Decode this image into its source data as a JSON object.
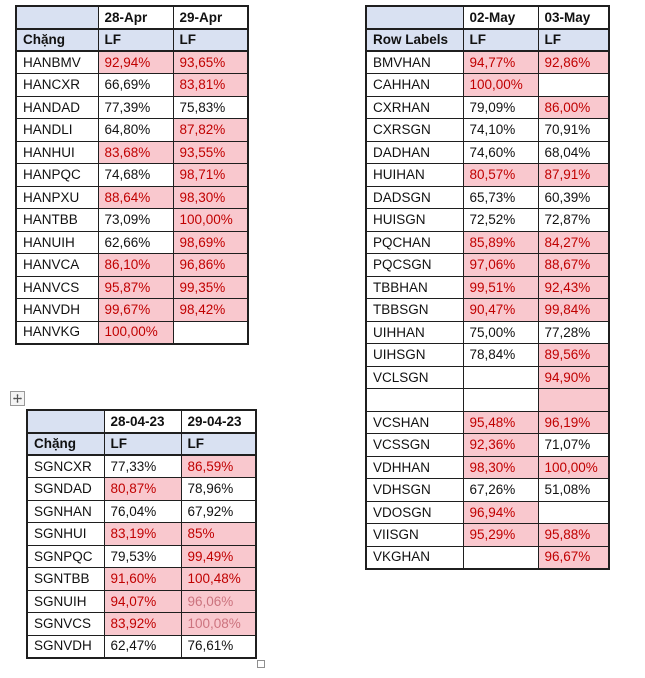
{
  "colors": {
    "header_fill": "#D9E1F2",
    "highlight_fill": "#F9C8CE",
    "highlight_text": "#C00000",
    "highlight_text_faded": "#CC737E",
    "grid_border": "#1F1F1F"
  },
  "icons": {
    "table_move_handle": "four-way-move-plus",
    "table_resize_handle": "small-square"
  },
  "tables": [
    {
      "name": "han-outbound-lf-table",
      "corner": "",
      "date_headers": [
        "28-Apr",
        "29-Apr"
      ],
      "label_header": "Chặng",
      "measure_headers": [
        "LF",
        "LF"
      ],
      "rows": [
        {
          "label": "HANBMV",
          "cells": [
            {
              "text": "92,94%",
              "highlight": true
            },
            {
              "text": "93,65%",
              "highlight": true
            }
          ]
        },
        {
          "label": "HANCXR",
          "cells": [
            {
              "text": "66,69%",
              "highlight": false
            },
            {
              "text": "83,81%",
              "highlight": true
            }
          ]
        },
        {
          "label": "HANDAD",
          "cells": [
            {
              "text": "77,39%",
              "highlight": false
            },
            {
              "text": "75,83%",
              "highlight": false
            }
          ]
        },
        {
          "label": "HANDLI",
          "cells": [
            {
              "text": "64,80%",
              "highlight": false
            },
            {
              "text": "87,82%",
              "highlight": true
            }
          ]
        },
        {
          "label": "HANHUI",
          "cells": [
            {
              "text": "83,68%",
              "highlight": true
            },
            {
              "text": "93,55%",
              "highlight": true
            }
          ]
        },
        {
          "label": "HANPQC",
          "cells": [
            {
              "text": "74,68%",
              "highlight": false
            },
            {
              "text": "98,71%",
              "highlight": true
            }
          ]
        },
        {
          "label": "HANPXU",
          "cells": [
            {
              "text": "88,64%",
              "highlight": true
            },
            {
              "text": "98,30%",
              "highlight": true
            }
          ]
        },
        {
          "label": "HANTBB",
          "cells": [
            {
              "text": "73,09%",
              "highlight": false
            },
            {
              "text": "100,00%",
              "highlight": true
            }
          ]
        },
        {
          "label": "HANUIH",
          "cells": [
            {
              "text": "62,66%",
              "highlight": false
            },
            {
              "text": "98,69%",
              "highlight": true
            }
          ]
        },
        {
          "label": "HANVCA",
          "cells": [
            {
              "text": "86,10%",
              "highlight": true
            },
            {
              "text": "96,86%",
              "highlight": true
            }
          ]
        },
        {
          "label": "HANVCS",
          "cells": [
            {
              "text": "95,87%",
              "highlight": true
            },
            {
              "text": "99,35%",
              "highlight": true
            }
          ]
        },
        {
          "label": "HANVDH",
          "cells": [
            {
              "text": "99,67%",
              "highlight": true
            },
            {
              "text": "98,42%",
              "highlight": true
            }
          ]
        },
        {
          "label": "HANVKG",
          "cells": [
            {
              "text": "100,00%",
              "highlight": true
            },
            {
              "text": "",
              "highlight": false
            }
          ]
        }
      ]
    },
    {
      "name": "sgn-outbound-lf-table",
      "corner": "",
      "date_headers": [
        "28-04-23",
        "29-04-23"
      ],
      "label_header": "Chặng",
      "measure_headers": [
        "LF",
        "LF"
      ],
      "rows": [
        {
          "label": "SGNCXR",
          "cells": [
            {
              "text": "77,33%",
              "highlight": false
            },
            {
              "text": "86,59%",
              "highlight": true
            }
          ]
        },
        {
          "label": "SGNDAD",
          "cells": [
            {
              "text": "80,87%",
              "highlight": true
            },
            {
              "text": "78,96%",
              "highlight": false
            }
          ]
        },
        {
          "label": "SGNHAN",
          "cells": [
            {
              "text": "76,04%",
              "highlight": false
            },
            {
              "text": "67,92%",
              "highlight": false
            }
          ]
        },
        {
          "label": "SGNHUI",
          "cells": [
            {
              "text": "83,19%",
              "highlight": true
            },
            {
              "text": "85%",
              "highlight": true
            }
          ]
        },
        {
          "label": "SGNPQC",
          "cells": [
            {
              "text": "79,53%",
              "highlight": false
            },
            {
              "text": "99,49%",
              "highlight": true
            }
          ]
        },
        {
          "label": "SGNTBB",
          "cells": [
            {
              "text": "91,60%",
              "highlight": true
            },
            {
              "text": "100,48%",
              "highlight": true
            }
          ]
        },
        {
          "label": "SGNUIH",
          "cells": [
            {
              "text": "94,07%",
              "highlight": true
            },
            {
              "text": "96,06%",
              "highlight": true,
              "faded": true
            }
          ]
        },
        {
          "label": "SGNVCS",
          "cells": [
            {
              "text": "83,92%",
              "highlight": true
            },
            {
              "text": "100,08%",
              "highlight": true,
              "faded": true
            }
          ]
        },
        {
          "label": "SGNVDH",
          "cells": [
            {
              "text": "62,47%",
              "highlight": false
            },
            {
              "text": "76,61%",
              "highlight": false
            }
          ]
        }
      ]
    },
    {
      "name": "inbound-lf-table",
      "corner": "",
      "date_headers": [
        "02-May",
        "03-May"
      ],
      "label_header": "Row Labels",
      "measure_headers": [
        "LF",
        "LF"
      ],
      "rows": [
        {
          "label": "BMVHAN",
          "cells": [
            {
              "text": "94,77%",
              "highlight": true
            },
            {
              "text": "92,86%",
              "highlight": true
            }
          ]
        },
        {
          "label": "CAHHAN",
          "cells": [
            {
              "text": "100,00%",
              "highlight": true
            },
            {
              "text": "",
              "highlight": false
            }
          ]
        },
        {
          "label": "CXRHAN",
          "cells": [
            {
              "text": "79,09%",
              "highlight": false
            },
            {
              "text": "86,00%",
              "highlight": true
            }
          ]
        },
        {
          "label": "CXRSGN",
          "cells": [
            {
              "text": "74,10%",
              "highlight": false
            },
            {
              "text": "70,91%",
              "highlight": false
            }
          ]
        },
        {
          "label": "DADHAN",
          "cells": [
            {
              "text": "74,60%",
              "highlight": false
            },
            {
              "text": "68,04%",
              "highlight": false
            }
          ]
        },
        {
          "label": "HUIHAN",
          "cells": [
            {
              "text": "80,57%",
              "highlight": true
            },
            {
              "text": "87,91%",
              "highlight": true
            }
          ]
        },
        {
          "label": "DADSGN",
          "cells": [
            {
              "text": "65,73%",
              "highlight": false
            },
            {
              "text": "60,39%",
              "highlight": false
            }
          ]
        },
        {
          "label": "HUISGN",
          "cells": [
            {
              "text": "72,52%",
              "highlight": false
            },
            {
              "text": "72,87%",
              "highlight": false
            }
          ]
        },
        {
          "label": "PQCHAN",
          "cells": [
            {
              "text": "85,89%",
              "highlight": true
            },
            {
              "text": "84,27%",
              "highlight": true
            }
          ]
        },
        {
          "label": "PQCSGN",
          "cells": [
            {
              "text": "97,06%",
              "highlight": true
            },
            {
              "text": "88,67%",
              "highlight": true
            }
          ]
        },
        {
          "label": "TBBHAN",
          "cells": [
            {
              "text": "99,51%",
              "highlight": true
            },
            {
              "text": "92,43%",
              "highlight": true
            }
          ]
        },
        {
          "label": "TBBSGN",
          "cells": [
            {
              "text": "90,47%",
              "highlight": true
            },
            {
              "text": "99,84%",
              "highlight": true
            }
          ]
        },
        {
          "label": "UIHHAN",
          "cells": [
            {
              "text": "75,00%",
              "highlight": false
            },
            {
              "text": "77,28%",
              "highlight": false
            }
          ]
        },
        {
          "label": "UIHSGN",
          "cells": [
            {
              "text": "78,84%",
              "highlight": false
            },
            {
              "text": "89,56%",
              "highlight": true
            }
          ]
        },
        {
          "label": "VCLSGN",
          "cells": [
            {
              "text": "",
              "highlight": false
            },
            {
              "text": "94,90%",
              "highlight": true
            }
          ]
        },
        {
          "label": "",
          "cells": [
            {
              "text": "",
              "highlight": false
            },
            {
              "text": "",
              "highlight": true
            }
          ]
        },
        {
          "label": "VCSHAN",
          "cells": [
            {
              "text": "95,48%",
              "highlight": true
            },
            {
              "text": "96,19%",
              "highlight": true
            }
          ]
        },
        {
          "label": "VCSSGN",
          "cells": [
            {
              "text": "92,36%",
              "highlight": true
            },
            {
              "text": "71,07%",
              "highlight": false
            }
          ]
        },
        {
          "label": "VDHHAN",
          "cells": [
            {
              "text": "98,30%",
              "highlight": true
            },
            {
              "text": "100,00%",
              "highlight": true
            }
          ]
        },
        {
          "label": "VDHSGN",
          "cells": [
            {
              "text": "67,26%",
              "highlight": false
            },
            {
              "text": "51,08%",
              "highlight": false
            }
          ]
        },
        {
          "label": "VDOSGN",
          "cells": [
            {
              "text": "96,94%",
              "highlight": true
            },
            {
              "text": "",
              "highlight": false
            }
          ]
        },
        {
          "label": "VIISGN",
          "cells": [
            {
              "text": "95,29%",
              "highlight": true
            },
            {
              "text": "95,88%",
              "highlight": true
            }
          ]
        },
        {
          "label": "VKGHAN",
          "cells": [
            {
              "text": "",
              "highlight": false
            },
            {
              "text": "96,67%",
              "highlight": true
            }
          ]
        }
      ]
    }
  ]
}
